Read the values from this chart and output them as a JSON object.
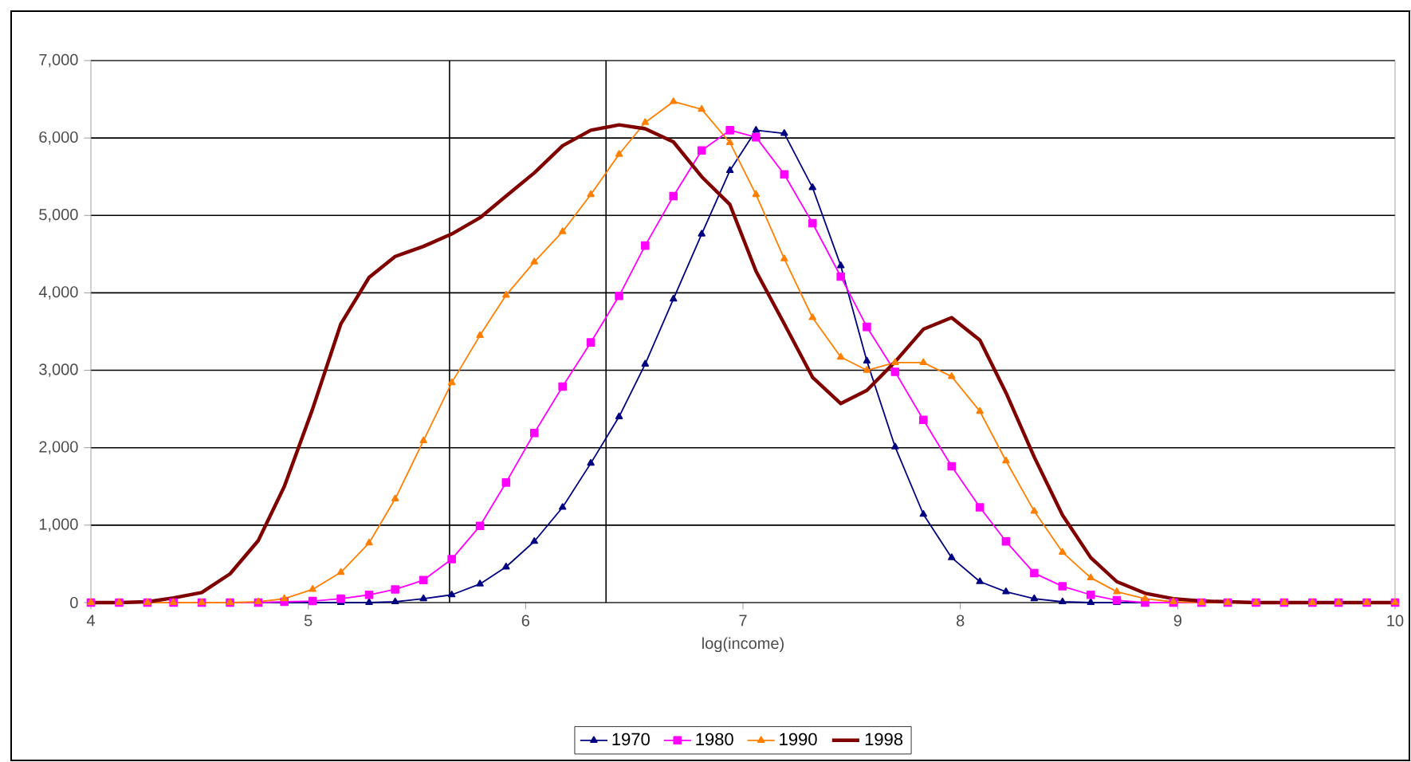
{
  "chart_data": {
    "type": "line",
    "xlabel": "log(income)",
    "x": [
      4.0,
      4.13,
      4.26,
      4.38,
      4.51,
      4.64,
      4.77,
      4.89,
      5.02,
      5.15,
      5.28,
      5.4,
      5.53,
      5.66,
      5.79,
      5.91,
      6.04,
      6.17,
      6.3,
      6.43,
      6.55,
      6.68,
      6.81,
      6.94,
      7.06,
      7.19,
      7.32,
      7.45,
      7.57,
      7.7,
      7.83,
      7.96,
      8.09,
      8.21,
      8.34,
      8.47,
      8.6,
      8.72,
      8.85,
      8.98,
      9.11,
      9.23,
      9.36,
      9.49,
      9.62,
      9.74,
      9.87,
      10.0
    ],
    "series": [
      {
        "name": "1970",
        "color": "#000080",
        "marker": "triangle",
        "values": [
          null,
          null,
          null,
          null,
          null,
          null,
          0,
          0,
          0,
          0,
          0,
          10,
          50,
          100,
          240,
          460,
          790,
          1230,
          1800,
          2400,
          3080,
          3920,
          4760,
          5580,
          6100,
          6060,
          5360,
          4350,
          3120,
          2010,
          1140,
          580,
          270,
          140,
          50,
          10,
          0,
          0,
          0,
          0,
          null,
          null,
          null,
          null,
          null,
          null,
          null,
          null
        ]
      },
      {
        "name": "1980",
        "color": "#ff00ff",
        "marker": "square",
        "values": [
          0,
          0,
          0,
          0,
          0,
          0,
          0,
          10,
          20,
          50,
          100,
          170,
          290,
          560,
          990,
          1550,
          2190,
          2790,
          3360,
          3960,
          4610,
          5250,
          5840,
          6100,
          6010,
          5530,
          4900,
          4210,
          3560,
          2980,
          2360,
          1760,
          1230,
          790,
          380,
          210,
          100,
          30,
          0,
          0,
          0,
          0,
          0,
          0,
          0,
          0,
          0,
          0
        ]
      },
      {
        "name": "1990",
        "color": "#ff7f00",
        "marker": "triangle",
        "values": [
          0,
          0,
          0,
          0,
          0,
          0,
          10,
          50,
          170,
          390,
          770,
          1340,
          2090,
          2840,
          3450,
          3970,
          4400,
          4790,
          5270,
          5790,
          6200,
          6470,
          6370,
          5940,
          5270,
          4440,
          3680,
          3170,
          3000,
          3100,
          3100,
          2920,
          2470,
          1830,
          1180,
          650,
          320,
          140,
          50,
          10,
          0,
          0,
          0,
          0,
          0,
          0,
          0,
          0
        ]
      },
      {
        "name": "1998",
        "color": "#800000",
        "marker": "none",
        "values": [
          0,
          0,
          10,
          60,
          130,
          370,
          800,
          1500,
          2500,
          3600,
          4200,
          4470,
          4600,
          4760,
          4970,
          5250,
          5550,
          5900,
          6100,
          6170,
          6120,
          5950,
          5500,
          5140,
          4280,
          3600,
          2910,
          2570,
          2740,
          3110,
          3530,
          3680,
          3390,
          2710,
          1880,
          1130,
          580,
          270,
          120,
          50,
          20,
          10,
          0,
          0,
          0,
          0,
          0,
          0
        ]
      }
    ],
    "xlim": [
      4,
      10
    ],
    "xticks": [
      4,
      5,
      6,
      7,
      8,
      9,
      10
    ],
    "ylim": [
      0,
      7000
    ],
    "yticks": [
      0,
      {
        "value": 1000,
        "label": "1,000"
      },
      {
        "value": 2000,
        "label": "2,000"
      },
      {
        "value": 3000,
        "label": "3,000"
      },
      {
        "value": 4000,
        "label": "4,000"
      },
      {
        "value": 5000,
        "label": "5,000"
      },
      {
        "value": 6000,
        "label": "6,000"
      },
      {
        "value": 7000,
        "label": "7,000"
      }
    ],
    "ref_lines": [
      {
        "axis": "x",
        "value": 5.65,
        "color": "#000000"
      },
      {
        "axis": "x",
        "value": 6.37,
        "color": "#000000"
      }
    ],
    "grid": "y",
    "legend": "bottom"
  }
}
